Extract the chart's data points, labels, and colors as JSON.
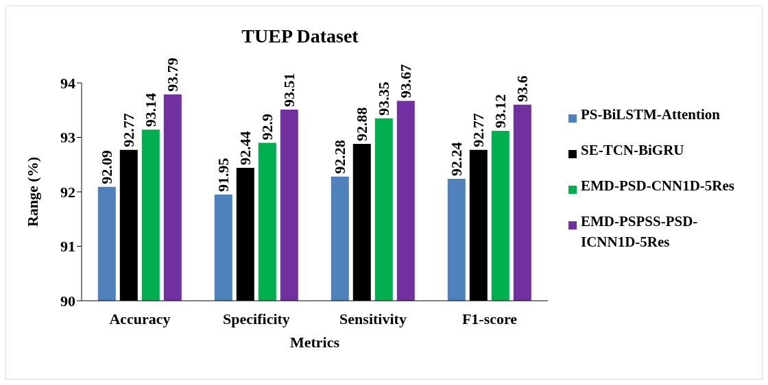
{
  "chart_data": {
    "type": "bar",
    "title": "TUEP Dataset",
    "xlabel": "Metrics",
    "ylabel": "Range (%)",
    "categories": [
      "Accuracy",
      "Specificity",
      "Sensitivity",
      "F1-score"
    ],
    "series": [
      {
        "name": "PS-BiLSTM-Attention",
        "color": "#4f81bd",
        "values": [
          92.09,
          91.95,
          92.28,
          92.24
        ]
      },
      {
        "name": "SE-TCN-BiGRU",
        "color": "#000000",
        "values": [
          92.77,
          92.44,
          92.88,
          92.77
        ]
      },
      {
        "name": "EMD-PSD-CNN1D-5Res",
        "color": "#00b050",
        "values": [
          93.14,
          92.9,
          93.35,
          93.12
        ]
      },
      {
        "name": "EMD-PSPSS-PSD-ICNN1D-5Res",
        "color": "#7030a0",
        "values": [
          93.79,
          93.51,
          93.67,
          93.6
        ]
      }
    ],
    "ylim": [
      90,
      94
    ],
    "yticks": [
      90,
      91,
      92,
      93,
      94
    ],
    "grid": false,
    "legend": "right",
    "data_labels": true
  }
}
